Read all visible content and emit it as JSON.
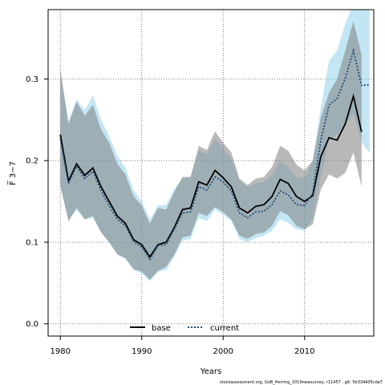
{
  "chart_data": {
    "type": "line",
    "xlabel": "Years",
    "ylabel": "F̅ 3−7",
    "xlim": [
      1978.5,
      2018.5
    ],
    "ylim": [
      -0.015,
      0.385
    ],
    "x_ticks": [
      1980,
      1990,
      2000,
      2010
    ],
    "y_ticks": [
      0.0,
      0.1,
      0.2,
      0.3
    ],
    "x_tick_labels": [
      "1980",
      "1990",
      "2000",
      "2010"
    ],
    "y_tick_labels": [
      "0.0",
      "0.1",
      "0.2",
      "0.3"
    ],
    "grid": "dotted",
    "legend_placement": "bottom-center",
    "footer": "stockassessment.org, GoB_Herring_2019newsurvey, r11457 , git: 5b334405cda7",
    "x": [
      1980,
      1981,
      1982,
      1983,
      1984,
      1985,
      1986,
      1987,
      1988,
      1989,
      1990,
      1991,
      1992,
      1993,
      1994,
      1995,
      1996,
      1997,
      1998,
      1999,
      2000,
      2001,
      2002,
      2003,
      2004,
      2005,
      2006,
      2007,
      2008,
      2009,
      2010,
      2011,
      2012,
      2013,
      2014,
      2015,
      2016,
      2017,
      2018
    ],
    "series": [
      {
        "name": "base",
        "color": "#000000",
        "band_color": "#7f7f7f",
        "x": [
          1980,
          1981,
          1982,
          1983,
          1984,
          1985,
          1986,
          1987,
          1988,
          1989,
          1990,
          1991,
          1992,
          1993,
          1994,
          1995,
          1996,
          1997,
          1998,
          1999,
          2000,
          2001,
          2002,
          2003,
          2004,
          2005,
          2006,
          2007,
          2008,
          2009,
          2010,
          2011,
          2012,
          2013,
          2014,
          2015,
          2016,
          2017
        ],
        "values": [
          0.232,
          0.175,
          0.196,
          0.182,
          0.191,
          0.168,
          0.15,
          0.132,
          0.123,
          0.103,
          0.097,
          0.082,
          0.097,
          0.1,
          0.118,
          0.14,
          0.142,
          0.174,
          0.17,
          0.188,
          0.179,
          0.168,
          0.142,
          0.136,
          0.144,
          0.146,
          0.156,
          0.177,
          0.172,
          0.156,
          0.15,
          0.157,
          0.205,
          0.228,
          0.225,
          0.245,
          0.279,
          0.235
        ],
        "upper": [
          0.313,
          0.245,
          0.272,
          0.255,
          0.268,
          0.238,
          0.222,
          0.196,
          0.183,
          0.156,
          0.145,
          0.123,
          0.142,
          0.14,
          0.162,
          0.18,
          0.18,
          0.218,
          0.213,
          0.236,
          0.222,
          0.21,
          0.178,
          0.17,
          0.178,
          0.18,
          0.192,
          0.218,
          0.212,
          0.195,
          0.188,
          0.2,
          0.253,
          0.283,
          0.3,
          0.335,
          0.371,
          0.33
        ],
        "lower": [
          0.17,
          0.125,
          0.142,
          0.128,
          0.132,
          0.112,
          0.1,
          0.085,
          0.08,
          0.067,
          0.064,
          0.054,
          0.065,
          0.07,
          0.085,
          0.106,
          0.108,
          0.136,
          0.132,
          0.143,
          0.137,
          0.128,
          0.108,
          0.104,
          0.11,
          0.112,
          0.12,
          0.138,
          0.133,
          0.12,
          0.116,
          0.122,
          0.165,
          0.183,
          0.178,
          0.185,
          0.21,
          0.168
        ]
      },
      {
        "name": "current",
        "color": "#1f4e79",
        "band_color": "#87ceeb",
        "x": [
          1980,
          1981,
          1982,
          1983,
          1984,
          1985,
          1986,
          1987,
          1988,
          1989,
          1990,
          1991,
          1992,
          1993,
          1994,
          1995,
          1996,
          1997,
          1998,
          1999,
          2000,
          2001,
          2002,
          2003,
          2004,
          2005,
          2006,
          2007,
          2008,
          2009,
          2010,
          2011,
          2012,
          2013,
          2014,
          2015,
          2016,
          2017,
          2018
        ],
        "values": [
          0.226,
          0.172,
          0.193,
          0.178,
          0.187,
          0.163,
          0.145,
          0.128,
          0.12,
          0.101,
          0.094,
          0.079,
          0.096,
          0.097,
          0.116,
          0.136,
          0.137,
          0.168,
          0.164,
          0.18,
          0.174,
          0.163,
          0.136,
          0.13,
          0.137,
          0.138,
          0.146,
          0.163,
          0.158,
          0.146,
          0.145,
          0.16,
          0.225,
          0.268,
          0.276,
          0.301,
          0.335,
          0.292,
          0.293
        ],
        "upper": [
          0.305,
          0.248,
          0.275,
          0.262,
          0.28,
          0.25,
          0.23,
          0.206,
          0.191,
          0.164,
          0.15,
          0.128,
          0.145,
          0.146,
          0.165,
          0.178,
          0.18,
          0.212,
          0.208,
          0.226,
          0.215,
          0.202,
          0.175,
          0.168,
          0.172,
          0.174,
          0.182,
          0.2,
          0.192,
          0.18,
          0.178,
          0.2,
          0.265,
          0.322,
          0.335,
          0.368,
          0.392,
          0.392,
          0.392
        ],
        "lower": [
          0.168,
          0.128,
          0.14,
          0.128,
          0.13,
          0.112,
          0.1,
          0.085,
          0.08,
          0.066,
          0.062,
          0.052,
          0.064,
          0.066,
          0.082,
          0.102,
          0.104,
          0.13,
          0.126,
          0.14,
          0.134,
          0.126,
          0.104,
          0.1,
          0.105,
          0.108,
          0.114,
          0.128,
          0.124,
          0.116,
          0.114,
          0.128,
          0.18,
          0.225,
          0.232,
          0.245,
          0.258,
          0.222,
          0.21
        ]
      }
    ]
  }
}
